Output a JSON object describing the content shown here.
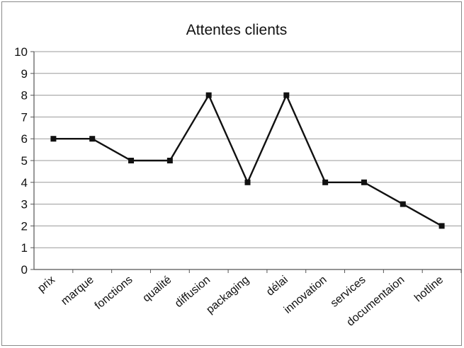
{
  "chart_data": {
    "type": "line",
    "title": "Attentes clients",
    "xlabel": "",
    "ylabel": "",
    "categories": [
      "prix",
      "marque",
      "fonctions",
      "qualité",
      "diffusion",
      "packaging",
      "délai",
      "innovation",
      "services",
      "documentaion",
      "hotline"
    ],
    "series": [
      {
        "values": [
          6,
          6,
          5,
          5,
          8,
          4,
          8,
          4,
          4,
          3,
          2
        ]
      }
    ],
    "ylim": [
      0,
      10
    ],
    "yticks": [
      "0",
      "1",
      "2",
      "3",
      "4",
      "5",
      "6",
      "7",
      "8",
      "9",
      "10"
    ],
    "grid": true,
    "legend": "none",
    "colors": {
      "line": "#111111",
      "marker": "#111111",
      "grid": "#9a9a9a",
      "frame": "#8a8a8a"
    }
  }
}
